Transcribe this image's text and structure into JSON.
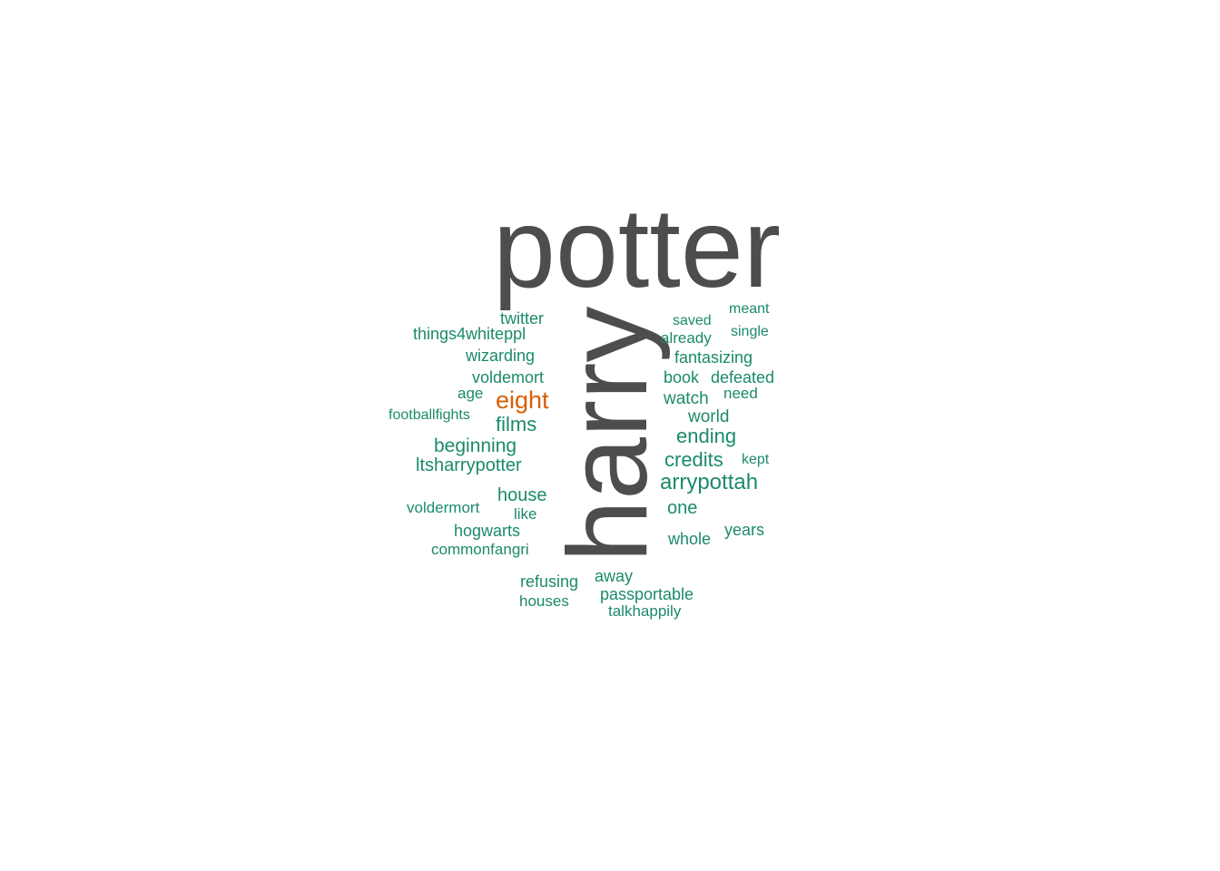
{
  "colors": {
    "small": "#1b8a6b",
    "largest": "#4d4d4d",
    "accent": "#d95f02"
  },
  "words": {
    "potter": "potter",
    "harry": "harry",
    "eight": "eight",
    "arrypottah": "arrypottah",
    "credits": "credits",
    "ending": "ending",
    "ltsharrypotter": "ltsharrypotter",
    "beginning": "beginning",
    "films": "films",
    "house": "house",
    "voldemort": "voldemort",
    "wizarding": "wizarding",
    "things4whiteppl": "things4whiteppl",
    "twitter": "twitter",
    "book": "book",
    "defeated": "defeated",
    "fantasizing": "fantasizing",
    "watch": "watch",
    "world": "world",
    "one": "one",
    "years": "years",
    "whole": "whole",
    "hogwarts": "hogwarts",
    "commonfangri": "commonfangri",
    "refusing": "refusing",
    "passportable": "passportable",
    "away": "away",
    "talkhappily": "talkhappily",
    "houses": "houses",
    "already": "already",
    "saved": "saved",
    "meant": "meant",
    "single": "single",
    "need": "need",
    "age": "age",
    "kept": "kept",
    "football": "footballfights",
    "voldermort": "voldermort",
    "like": "like"
  }
}
